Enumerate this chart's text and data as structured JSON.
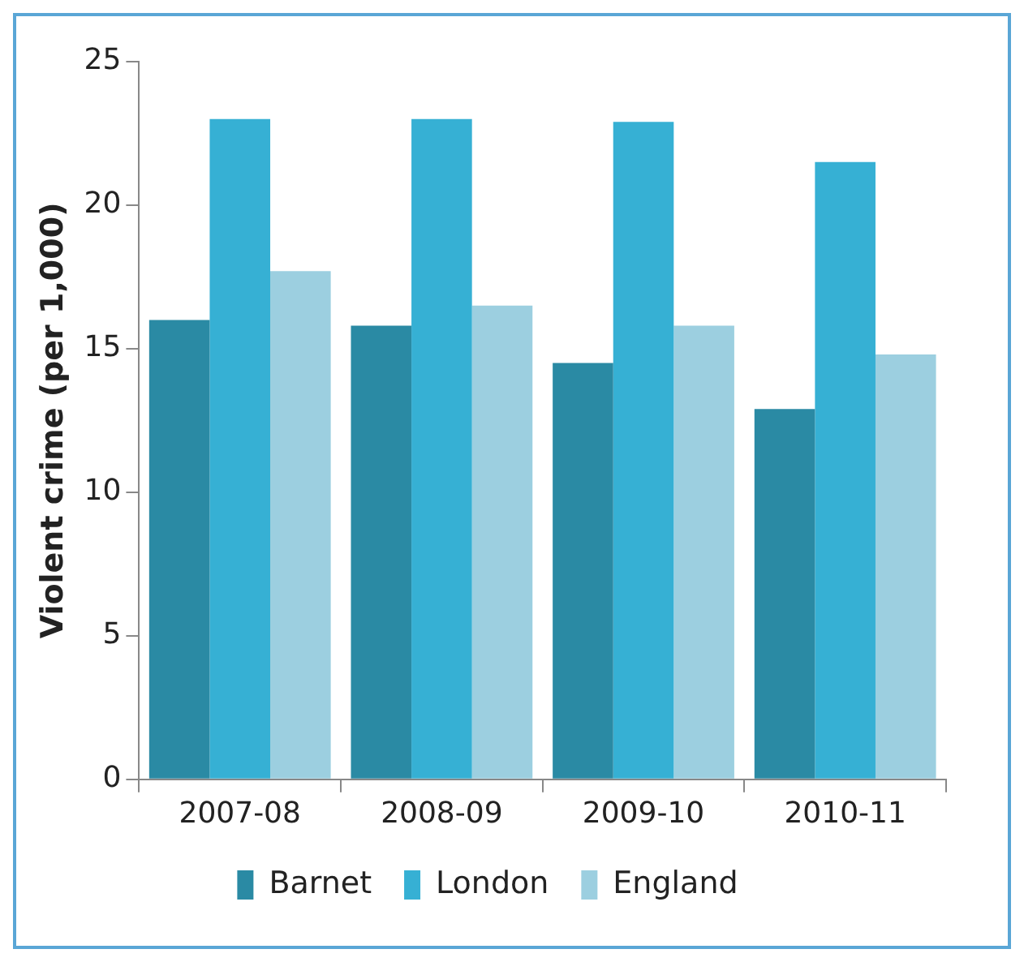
{
  "chart_data": {
    "type": "bar",
    "ylabel": "Violent crime (per 1,000)",
    "categories": [
      "2007-08",
      "2008-09",
      "2009-10",
      "2010-11"
    ],
    "series": [
      {
        "name": "Barnet",
        "color": "#2a8aa4",
        "values": [
          16.0,
          15.8,
          14.5,
          12.9
        ]
      },
      {
        "name": "London",
        "color": "#36b0d4",
        "values": [
          23.0,
          23.0,
          22.9,
          21.5
        ]
      },
      {
        "name": "England",
        "color": "#9ccfe0",
        "values": [
          17.7,
          16.5,
          15.8,
          14.8
        ]
      }
    ],
    "ylim": [
      0,
      25
    ],
    "yticks": [
      0,
      5,
      10,
      15,
      20,
      25
    ],
    "grid": false,
    "legend": "bottom"
  }
}
